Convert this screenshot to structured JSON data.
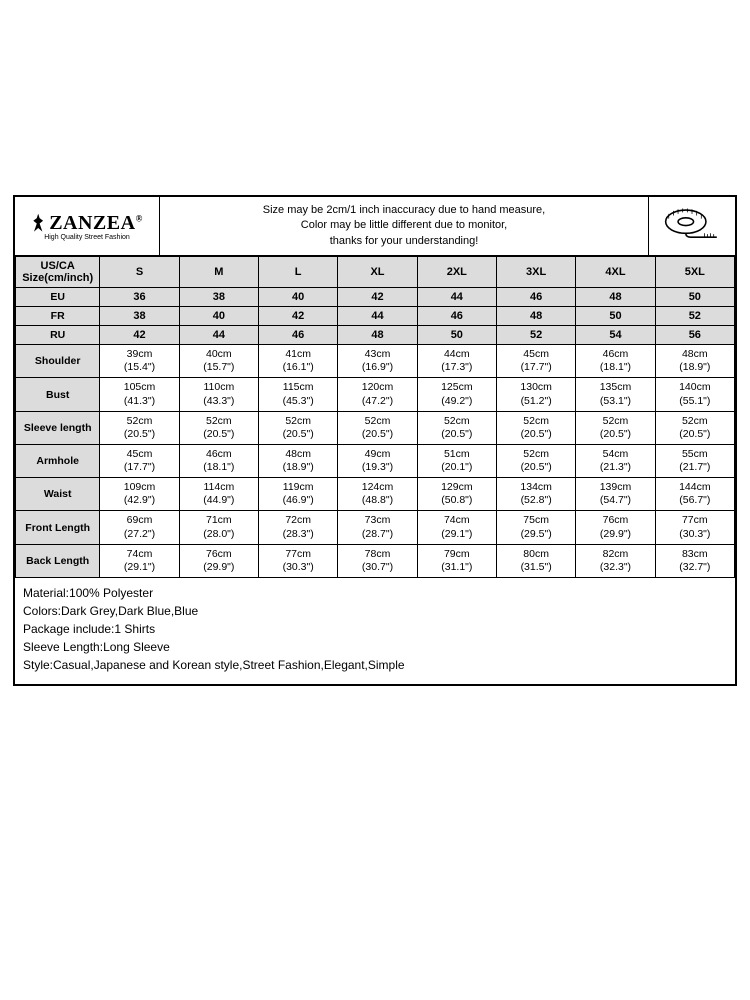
{
  "brand": {
    "name": "ZANZEA",
    "reg": "®",
    "tagline": "High Quality Street Fashion"
  },
  "notice": {
    "line1": "Size may be 2cm/1 inch inaccuracy due to hand measure,",
    "line2": "Color may be little different due to monitor,",
    "line3": "thanks for your understanding!"
  },
  "columns": {
    "first": "US/CA Size(cm/inch)",
    "sizes": [
      "S",
      "M",
      "L",
      "XL",
      "2XL",
      "3XL",
      "4XL",
      "5XL"
    ]
  },
  "region_rows": [
    {
      "label": "EU",
      "values": [
        "36",
        "38",
        "40",
        "42",
        "44",
        "46",
        "48",
        "50"
      ]
    },
    {
      "label": "FR",
      "values": [
        "38",
        "40",
        "42",
        "44",
        "46",
        "48",
        "50",
        "52"
      ]
    },
    {
      "label": "RU",
      "values": [
        "42",
        "44",
        "46",
        "48",
        "50",
        "52",
        "54",
        "56"
      ]
    }
  ],
  "measure_rows": [
    {
      "label": "Shoulder",
      "values": [
        {
          "cm": "39cm",
          "in": "(15.4\")"
        },
        {
          "cm": "40cm",
          "in": "(15.7\")"
        },
        {
          "cm": "41cm",
          "in": "(16.1\")"
        },
        {
          "cm": "43cm",
          "in": "(16.9\")"
        },
        {
          "cm": "44cm",
          "in": "(17.3\")"
        },
        {
          "cm": "45cm",
          "in": "(17.7\")"
        },
        {
          "cm": "46cm",
          "in": "(18.1\")"
        },
        {
          "cm": "48cm",
          "in": "(18.9\")"
        }
      ]
    },
    {
      "label": "Bust",
      "values": [
        {
          "cm": "105cm",
          "in": "(41.3\")"
        },
        {
          "cm": "110cm",
          "in": "(43.3\")"
        },
        {
          "cm": "115cm",
          "in": "(45.3\")"
        },
        {
          "cm": "120cm",
          "in": "(47.2\")"
        },
        {
          "cm": "125cm",
          "in": "(49.2\")"
        },
        {
          "cm": "130cm",
          "in": "(51.2\")"
        },
        {
          "cm": "135cm",
          "in": "(53.1\")"
        },
        {
          "cm": "140cm",
          "in": "(55.1\")"
        }
      ]
    },
    {
      "label": "Sleeve length",
      "values": [
        {
          "cm": "52cm",
          "in": "(20.5\")"
        },
        {
          "cm": "52cm",
          "in": "(20.5\")"
        },
        {
          "cm": "52cm",
          "in": "(20.5\")"
        },
        {
          "cm": "52cm",
          "in": "(20.5\")"
        },
        {
          "cm": "52cm",
          "in": "(20.5\")"
        },
        {
          "cm": "52cm",
          "in": "(20.5\")"
        },
        {
          "cm": "52cm",
          "in": "(20.5\")"
        },
        {
          "cm": "52cm",
          "in": "(20.5\")"
        }
      ]
    },
    {
      "label": "Armhole",
      "values": [
        {
          "cm": "45cm",
          "in": "(17.7\")"
        },
        {
          "cm": "46cm",
          "in": "(18.1\")"
        },
        {
          "cm": "48cm",
          "in": "(18.9\")"
        },
        {
          "cm": "49cm",
          "in": "(19.3\")"
        },
        {
          "cm": "51cm",
          "in": "(20.1\")"
        },
        {
          "cm": "52cm",
          "in": "(20.5\")"
        },
        {
          "cm": "54cm",
          "in": "(21.3\")"
        },
        {
          "cm": "55cm",
          "in": "(21.7\")"
        }
      ]
    },
    {
      "label": "Waist",
      "values": [
        {
          "cm": "109cm",
          "in": "(42.9\")"
        },
        {
          "cm": "114cm",
          "in": "(44.9\")"
        },
        {
          "cm": "119cm",
          "in": "(46.9\")"
        },
        {
          "cm": "124cm",
          "in": "(48.8\")"
        },
        {
          "cm": "129cm",
          "in": "(50.8\")"
        },
        {
          "cm": "134cm",
          "in": "(52.8\")"
        },
        {
          "cm": "139cm",
          "in": "(54.7\")"
        },
        {
          "cm": "144cm",
          "in": "(56.7\")"
        }
      ]
    },
    {
      "label": "Front Length",
      "values": [
        {
          "cm": "69cm",
          "in": "(27.2\")"
        },
        {
          "cm": "71cm",
          "in": "(28.0\")"
        },
        {
          "cm": "72cm",
          "in": "(28.3\")"
        },
        {
          "cm": "73cm",
          "in": "(28.7\")"
        },
        {
          "cm": "74cm",
          "in": "(29.1\")"
        },
        {
          "cm": "75cm",
          "in": "(29.5\")"
        },
        {
          "cm": "76cm",
          "in": "(29.9\")"
        },
        {
          "cm": "77cm",
          "in": "(30.3\")"
        }
      ]
    },
    {
      "label": "Back Length",
      "values": [
        {
          "cm": "74cm",
          "in": "(29.1\")"
        },
        {
          "cm": "76cm",
          "in": "(29.9\")"
        },
        {
          "cm": "77cm",
          "in": "(30.3\")"
        },
        {
          "cm": "78cm",
          "in": "(30.7\")"
        },
        {
          "cm": "79cm",
          "in": "(31.1\")"
        },
        {
          "cm": "80cm",
          "in": "(31.5\")"
        },
        {
          "cm": "82cm",
          "in": "(32.3\")"
        },
        {
          "cm": "83cm",
          "in": "(32.7\")"
        }
      ]
    }
  ],
  "details": [
    "Material:100% Polyester",
    "Colors:Dark Grey,Dark Blue,Blue",
    "Package include:1 Shirts",
    "Sleeve Length:Long Sleeve",
    "Style:Casual,Japanese and Korean style,Street Fashion,Elegant,Simple"
  ],
  "colors": {
    "border": "#000000",
    "header_bg": "#dcdcdc",
    "background": "#ffffff",
    "text": "#000000"
  }
}
